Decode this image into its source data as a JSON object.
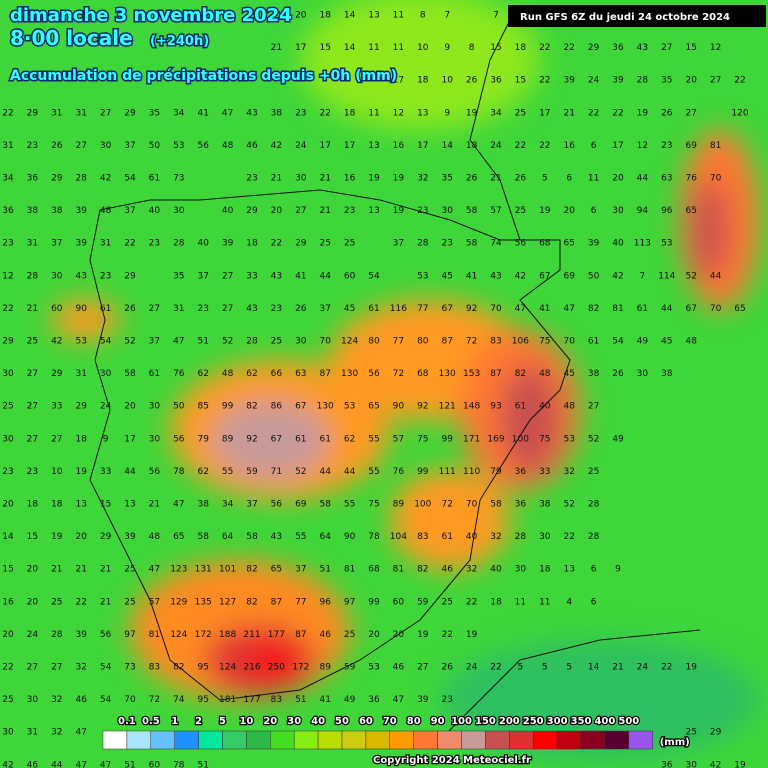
{
  "header": {
    "date": "dimanche 3 novembre 2024",
    "time": "8·00 locale",
    "lead": "(+240h)",
    "subtitle": "Accumulation de précipitations depuis +0h (mm)",
    "run": "Run GFS 6Z du jeudi 24 octobre 2024"
  },
  "legend": {
    "colors": [
      "#ffffff",
      "#a8e4ff",
      "#64c0ff",
      "#1e90ff",
      "#00e8a0",
      "#33cc66",
      "#2db84a",
      "#44dd22",
      "#88ee11",
      "#bbdd00",
      "#cccc11",
      "#d8b800",
      "#ff9900",
      "#ff7733",
      "#ef8a6a",
      "#c89a9a",
      "#c85050",
      "#e03030",
      "#ff0000",
      "#c00010",
      "#8a0020",
      "#5a0030",
      "#9955ee"
    ],
    "labels": [
      "0.1",
      "0.5",
      "1",
      "2",
      "5",
      "10",
      "20",
      "30",
      "40",
      "50",
      "60",
      "70",
      "80",
      "90",
      "100",
      "150",
      "200",
      "250",
      "300",
      "350",
      "400",
      "500"
    ],
    "unit": "(mm)"
  },
  "grid": {
    "rows": [
      [
        null,
        null,
        null,
        null,
        null,
        null,
        null,
        null,
        null,
        null,
        null,
        21,
        20,
        18,
        14,
        13,
        11,
        8,
        7,
        null,
        7
      ],
      [
        null,
        null,
        null,
        null,
        null,
        null,
        null,
        null,
        null,
        null,
        null,
        21,
        17,
        15,
        14,
        11,
        11,
        10,
        9,
        8,
        15,
        18,
        22,
        22,
        29,
        36,
        43,
        27,
        15,
        12
      ],
      [
        null,
        null,
        null,
        null,
        null,
        null,
        null,
        null,
        null,
        null,
        null,
        null,
        null,
        null,
        null,
        null,
        17,
        18,
        10,
        26,
        36,
        15,
        22,
        39,
        24,
        39,
        28,
        35,
        20,
        27,
        22
      ],
      [
        22,
        29,
        31,
        31,
        27,
        29,
        35,
        34,
        41,
        47,
        43,
        38,
        23,
        22,
        18,
        11,
        12,
        13,
        9,
        19,
        34,
        25,
        17,
        21,
        22,
        22,
        19,
        26,
        27,
        null,
        120
      ],
      [
        31,
        23,
        26,
        27,
        30,
        37,
        50,
        53,
        56,
        48,
        46,
        42,
        24,
        17,
        17,
        13,
        16,
        17,
        14,
        18,
        24,
        22,
        22,
        16,
        6,
        17,
        12,
        23,
        69,
        81
      ],
      [
        34,
        36,
        29,
        28,
        42,
        54,
        61,
        73,
        null,
        null,
        23,
        21,
        30,
        21,
        16,
        19,
        19,
        32,
        35,
        26,
        21,
        26,
        5,
        6,
        11,
        20,
        44,
        63,
        76,
        70
      ],
      [
        36,
        38,
        38,
        39,
        48,
        37,
        40,
        30,
        null,
        40,
        29,
        20,
        27,
        21,
        23,
        13,
        19,
        23,
        30,
        58,
        57,
        25,
        19,
        20,
        6,
        30,
        94,
        96,
        65
      ],
      [
        23,
        31,
        37,
        39,
        31,
        22,
        23,
        28,
        40,
        39,
        18,
        22,
        29,
        25,
        25,
        null,
        37,
        28,
        23,
        58,
        74,
        56,
        68,
        65,
        39,
        40,
        113,
        53
      ],
      [
        12,
        28,
        30,
        43,
        23,
        29,
        null,
        35,
        37,
        27,
        33,
        43,
        41,
        44,
        60,
        54,
        null,
        53,
        45,
        41,
        43,
        42,
        67,
        69,
        50,
        42,
        7,
        114,
        52,
        44
      ],
      [
        22,
        21,
        60,
        90,
        61,
        26,
        27,
        31,
        23,
        27,
        43,
        23,
        26,
        37,
        45,
        61,
        116,
        77,
        67,
        92,
        70,
        47,
        41,
        47,
        82,
        81,
        61,
        44,
        67,
        70,
        65
      ],
      [
        29,
        25,
        42,
        53,
        54,
        52,
        37,
        47,
        51,
        52,
        28,
        25,
        30,
        70,
        124,
        80,
        77,
        80,
        87,
        72,
        83,
        106,
        75,
        70,
        61,
        54,
        49,
        45,
        48
      ],
      [
        30,
        27,
        29,
        31,
        30,
        58,
        61,
        76,
        62,
        48,
        62,
        66,
        63,
        87,
        130,
        56,
        72,
        68,
        130,
        153,
        87,
        82,
        48,
        45,
        38,
        26,
        30,
        38
      ],
      [
        25,
        27,
        33,
        29,
        24,
        20,
        30,
        50,
        85,
        99,
        82,
        86,
        67,
        130,
        53,
        65,
        90,
        92,
        121,
        148,
        93,
        61,
        40,
        48,
        27
      ],
      [
        30,
        27,
        27,
        18,
        9,
        17,
        30,
        56,
        79,
        89,
        92,
        67,
        61,
        61,
        62,
        55,
        57,
        75,
        99,
        171,
        169,
        100,
        75,
        53,
        52,
        49
      ],
      [
        23,
        23,
        10,
        19,
        33,
        44,
        56,
        78,
        62,
        55,
        59,
        71,
        52,
        44,
        44,
        55,
        76,
        99,
        111,
        110,
        79,
        36,
        33,
        32,
        25
      ],
      [
        20,
        18,
        18,
        13,
        15,
        13,
        21,
        47,
        38,
        34,
        37,
        56,
        69,
        58,
        55,
        75,
        89,
        100,
        72,
        70,
        58,
        36,
        38,
        52,
        28
      ],
      [
        14,
        15,
        19,
        20,
        29,
        39,
        48,
        65,
        58,
        64,
        58,
        43,
        55,
        64,
        90,
        78,
        104,
        83,
        61,
        40,
        32,
        28,
        30,
        22,
        28
      ],
      [
        15,
        20,
        21,
        21,
        21,
        25,
        47,
        123,
        131,
        101,
        82,
        65,
        37,
        51,
        81,
        68,
        81,
        82,
        46,
        32,
        40,
        30,
        18,
        13,
        6,
        9
      ],
      [
        16,
        20,
        25,
        22,
        21,
        25,
        57,
        129,
        135,
        127,
        82,
        87,
        77,
        96,
        97,
        99,
        60,
        59,
        25,
        22,
        18,
        11,
        11,
        4,
        6
      ],
      [
        20,
        24,
        28,
        39,
        56,
        97,
        81,
        124,
        172,
        188,
        211,
        177,
        87,
        46,
        25,
        20,
        20,
        19,
        22,
        19
      ],
      [
        22,
        27,
        27,
        32,
        54,
        73,
        83,
        82,
        95,
        124,
        216,
        250,
        172,
        89,
        59,
        53,
        46,
        27,
        26,
        24,
        22,
        5,
        5,
        5,
        14,
        21,
        24,
        22,
        19
      ],
      [
        25,
        30,
        32,
        46,
        54,
        70,
        72,
        74,
        95,
        181,
        177,
        83,
        51,
        41,
        49,
        36,
        47,
        39,
        23
      ],
      [
        30,
        31,
        32,
        47,
        null,
        null,
        null,
        null,
        null,
        null,
        null,
        null,
        null,
        null,
        null,
        null,
        null,
        null,
        null,
        null,
        null,
        null,
        null,
        null,
        null,
        null,
        null,
        null,
        25,
        29
      ],
      [
        42,
        46,
        44,
        47,
        47,
        51,
        60,
        78,
        51,
        null,
        null,
        null,
        null,
        null,
        null,
        null,
        null,
        null,
        null,
        null,
        null,
        null,
        null,
        null,
        null,
        null,
        null,
        36,
        30,
        42,
        19
      ]
    ]
  },
  "footer": {
    "copyright": "Copyright 2024 Meteociel.fr"
  }
}
